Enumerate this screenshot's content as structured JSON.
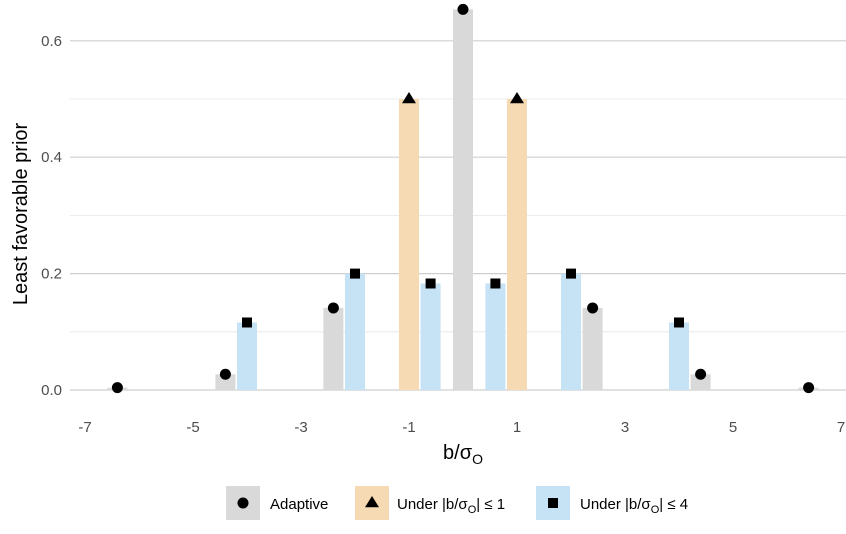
{
  "chart_data": {
    "type": "bar",
    "xlabel": "b/σ",
    "xlabel_sub": "O",
    "ylabel": "Least favorable prior",
    "xlim": [
      -7,
      7
    ],
    "ylim": [
      0,
      0.65
    ],
    "x_ticks": [
      -7,
      -5,
      -3,
      -1,
      1,
      3,
      5,
      7
    ],
    "x_tick_labels": [
      "-7",
      "-5",
      "-3",
      "-1",
      "1",
      "3",
      "5",
      "7"
    ],
    "y_ticks": [
      0,
      0.2,
      0.4,
      0.6
    ],
    "y_tick_labels": [
      "0.0",
      "0.2",
      "0.4",
      "0.6"
    ],
    "grid": true,
    "legend_position": "bottom",
    "series": [
      {
        "name": "Adaptive",
        "marker": "circle",
        "color": "#d9d9d9",
        "x": [
          -6.4,
          -4.4,
          -2.4,
          0,
          2.4,
          4.4,
          6.4
        ],
        "values": [
          0.004,
          0.027,
          0.141,
          0.654,
          0.141,
          0.027,
          0.004
        ]
      },
      {
        "name": "Under |b/σ",
        "name_sub": "O",
        "name_suffix": "| ≤ 1",
        "marker": "triangle",
        "color": "#f5dab3",
        "x": [
          -1,
          1
        ],
        "values": [
          0.5,
          0.5
        ]
      },
      {
        "name": "Under |b/σ",
        "name_sub": "O",
        "name_suffix": "| ≤ 4",
        "marker": "square",
        "color": "#c6e2f5",
        "x": [
          -4,
          -2,
          -0.6,
          0.6,
          2,
          4
        ],
        "values": [
          0.116,
          0.2,
          0.183,
          0.183,
          0.2,
          0.116
        ]
      }
    ]
  }
}
